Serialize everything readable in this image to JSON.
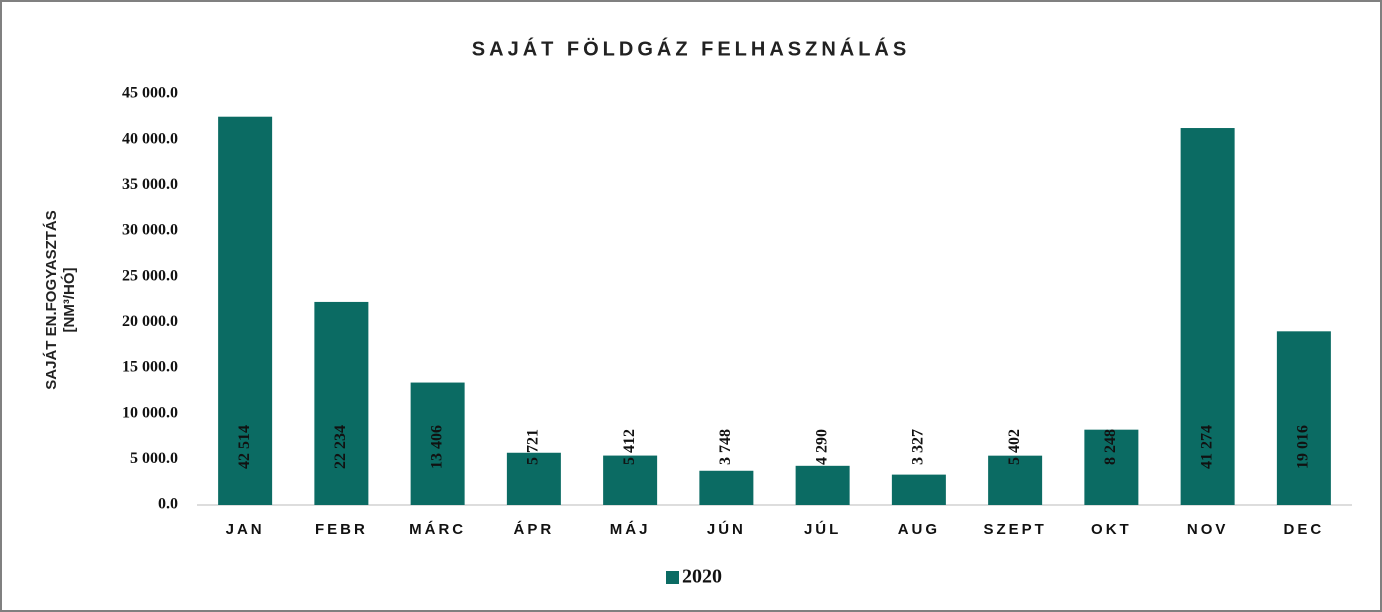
{
  "chart_data": {
    "type": "bar",
    "title": "SAJÁT FÖLDGÁZ FELHASZNÁLÁS",
    "y_label": [
      "SAJÁT EN.FOGYASZTÁS",
      "[NM³/HÓ]"
    ],
    "categories": [
      "JAN",
      "FEBR",
      "MÁRC",
      "ÁPR",
      "MÁJ",
      "JÚN",
      "JÚL",
      "AUG",
      "SZEPT",
      "OKT",
      "NOV",
      "DEC"
    ],
    "series": [
      {
        "name": "2020",
        "color": "#0b6b63",
        "values": [
          42514,
          22234,
          13406,
          5721,
          5412,
          3748,
          4290,
          3327,
          5402,
          8248,
          41274,
          19016
        ],
        "value_labels": [
          "42 514",
          "22 234",
          "13 406",
          "5 721",
          "5 412",
          "3 748",
          "4 290",
          "3 327",
          "5 402",
          "8 248",
          "41 274",
          "19 016"
        ]
      }
    ],
    "ylim": [
      0,
      45000
    ],
    "yticks": [
      {
        "value": 0,
        "label": "0.0"
      },
      {
        "value": 5000,
        "label": "5 000.0"
      },
      {
        "value": 10000,
        "label": "10 000.0"
      },
      {
        "value": 15000,
        "label": "15 000.0"
      },
      {
        "value": 20000,
        "label": "20 000.0"
      },
      {
        "value": 25000,
        "label": "25 000.0"
      },
      {
        "value": 30000,
        "label": "30 000.0"
      },
      {
        "value": 35000,
        "label": "35 000.0"
      },
      {
        "value": 40000,
        "label": "40 000.0"
      },
      {
        "value": 45000,
        "label": "45 000.0"
      }
    ],
    "grid": false,
    "legend": "bottom"
  }
}
